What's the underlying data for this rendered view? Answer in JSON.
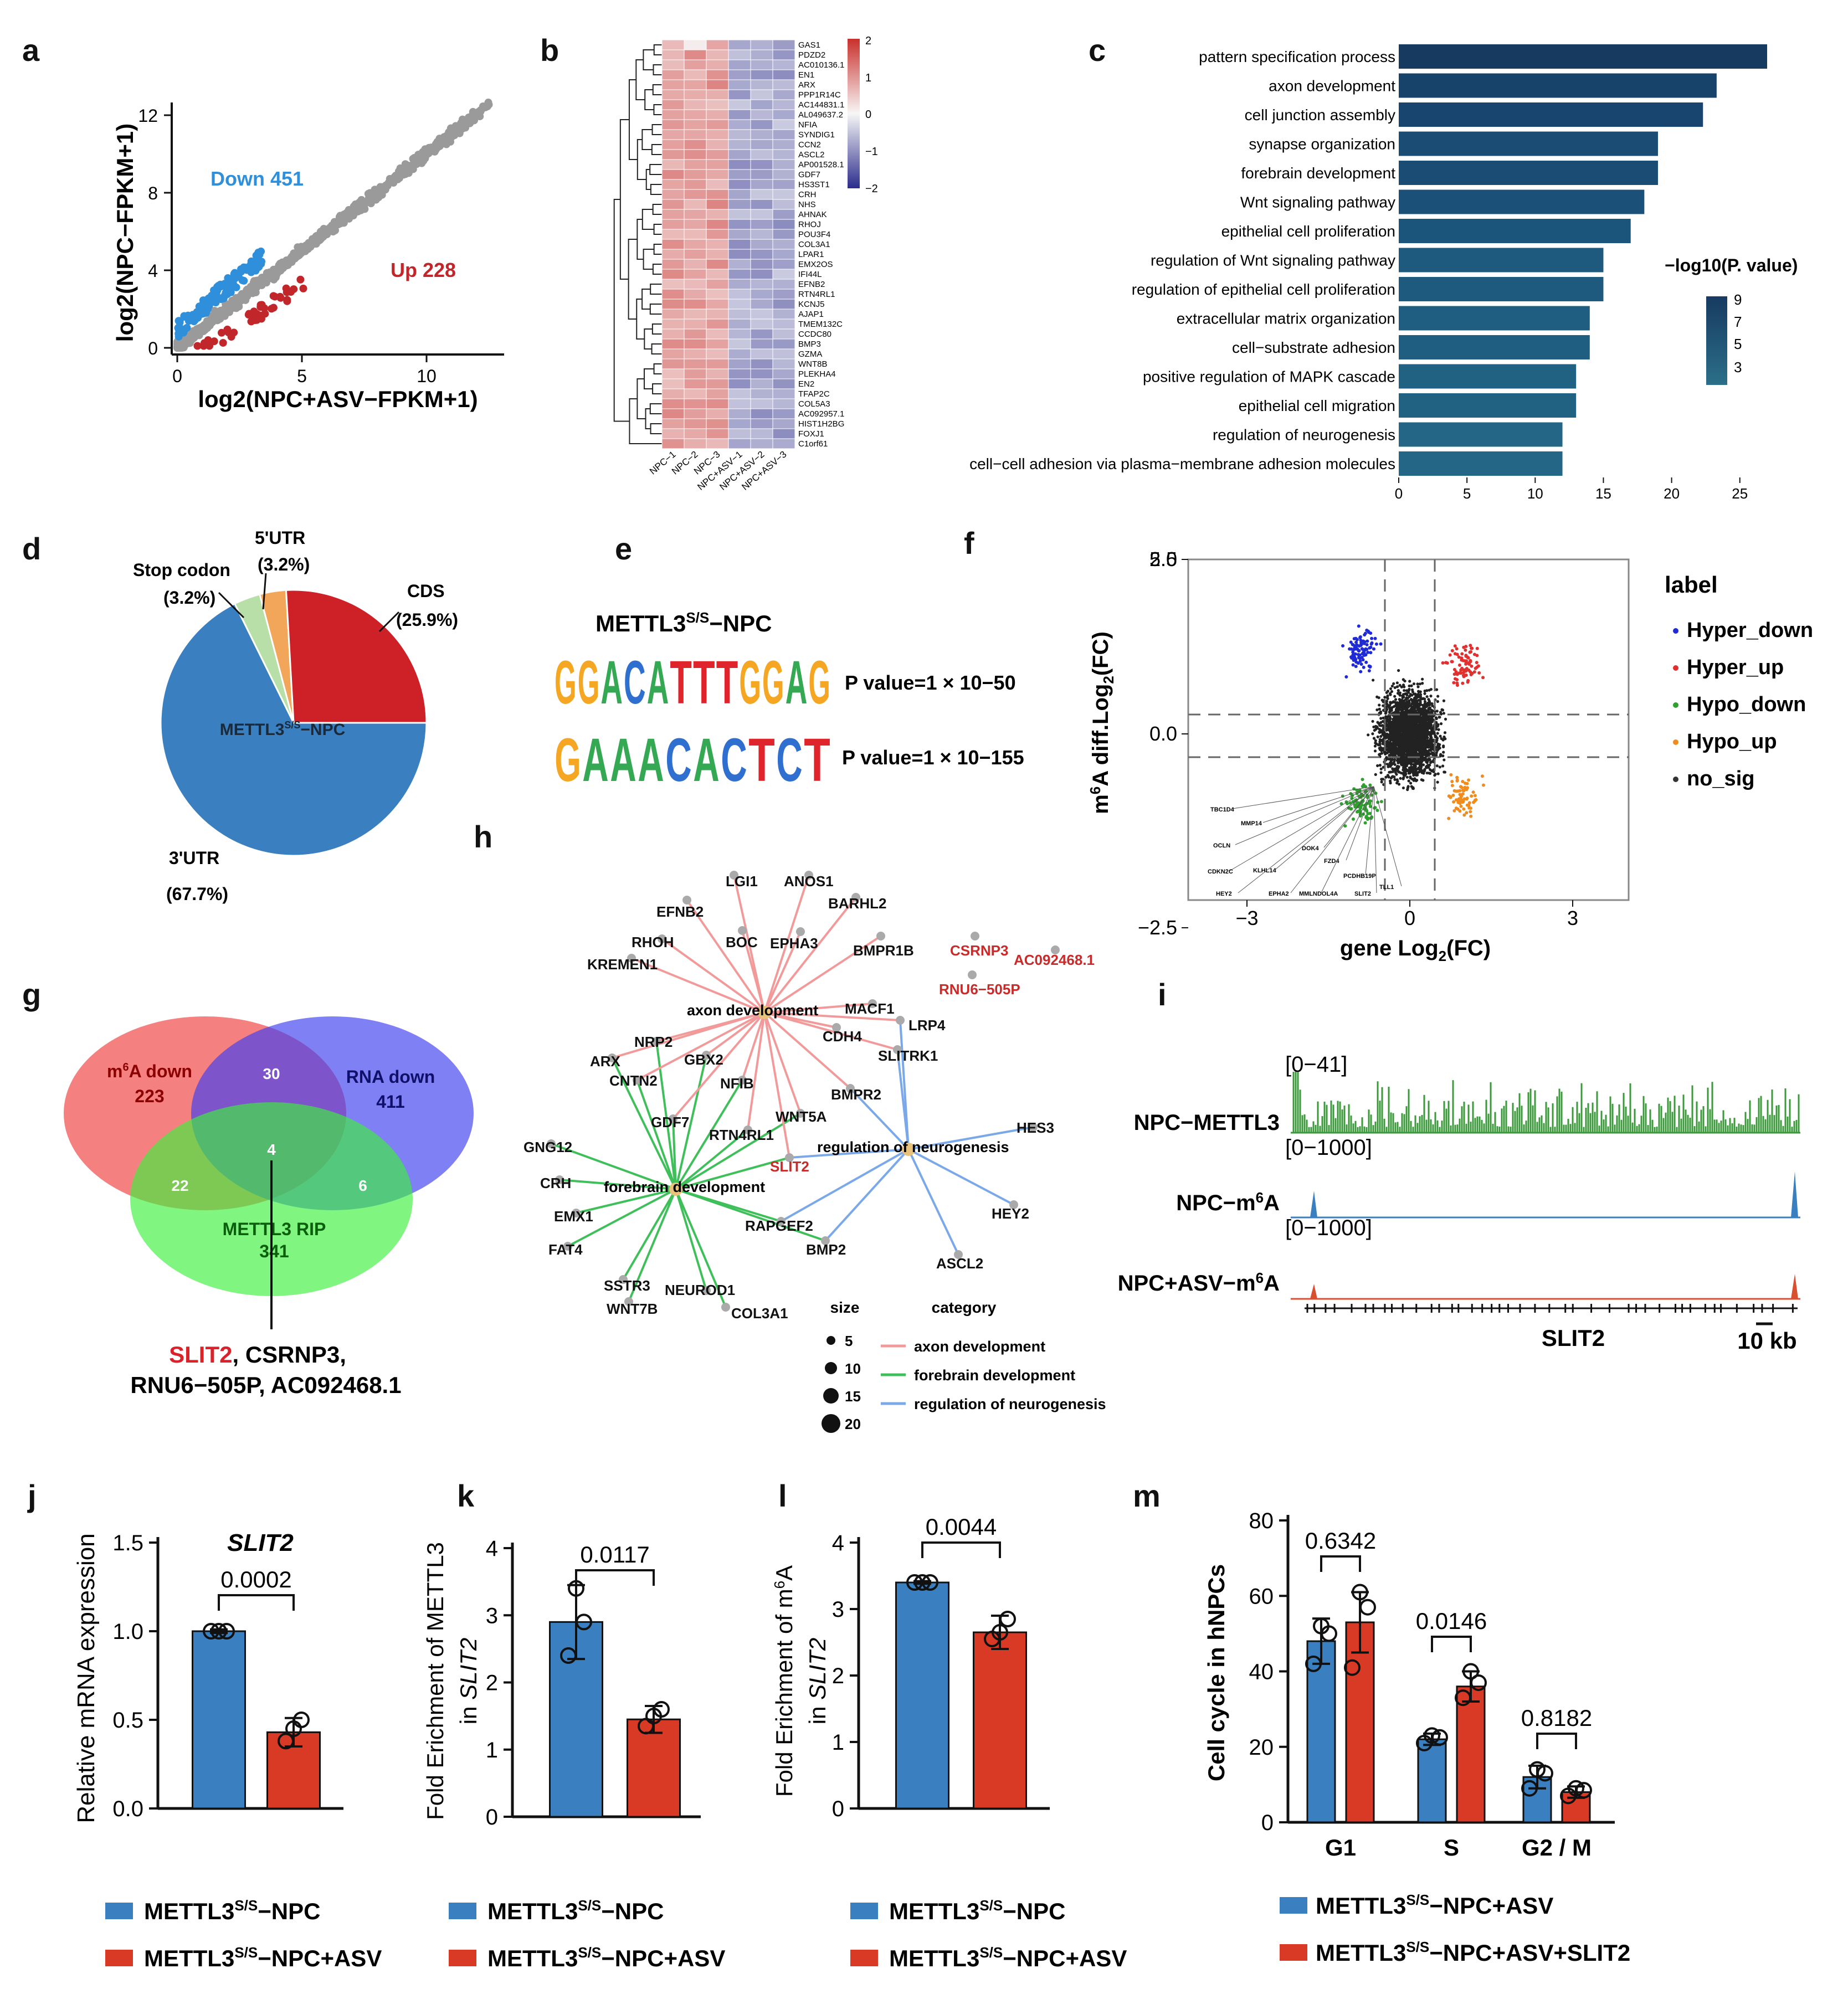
{
  "colors": {
    "blue": "#3a7fc0",
    "red": "#d93a25",
    "green": "#3aa83a",
    "gray": "#9a9a9a",
    "navy": "#173a61",
    "teal": "#23607f",
    "sigDown": "#2f8fdb",
    "sigUp": "#c0262a"
  },
  "panels": {
    "a": "a",
    "b": "b",
    "c": "c",
    "d": "d",
    "e": "e",
    "f": "f",
    "g": "g",
    "h": "h",
    "i": "i",
    "j": "j",
    "k": "k",
    "l": "l",
    "m": "m"
  },
  "panel_a": {
    "down_label": "Down 451",
    "up_label": "Up 228",
    "xlabel": "log2(NPC+ASV−FPKM+1)",
    "ylabel": "log2(NPC−FPKM+1)",
    "xticks": [
      "0",
      "5",
      "10"
    ],
    "yticks": [
      "0",
      "4",
      "8",
      "12"
    ]
  },
  "panel_b": {
    "genes": [
      "GAS1",
      "PDZD2",
      "AC010136.1",
      "EN1",
      "ARX",
      "PPP1R14C",
      "AC144831.1",
      "AL049637.2",
      "NFIA",
      "SYNDIG1",
      "CCN2",
      "ASCL2",
      "AP001528.1",
      "GDF7",
      "HS3ST1",
      "CRH",
      "NHS",
      "AHNAK",
      "RHOJ",
      "POU3F4",
      "COL3A1",
      "LPAR1",
      "EMX2OS",
      "IFI44L",
      "EFNB2",
      "RTN4RL1",
      "KCNJ5",
      "AJAP1",
      "TMEM132C",
      "CCDC80",
      "BMP3",
      "GZMA",
      "WNT8B",
      "PLEKHA4",
      "EN2",
      "TFAP2C",
      "COL5A3",
      "AC092957.1",
      "HIST1H2BG",
      "FOXJ1",
      "C1orf61"
    ],
    "samples": [
      "NPC−1",
      "NPC−2",
      "NPC−3",
      "NPC+ASV−1",
      "NPC+ASV−2",
      "NPC+ASV−3"
    ],
    "scale_ticks": [
      "2",
      "1",
      "0",
      "−1",
      "−2"
    ]
  },
  "chart_data": [
    {
      "panel": "c",
      "type": "bar",
      "orientation": "horizontal",
      "categories": [
        "pattern specification process",
        "axon development",
        "cell junction assembly",
        "synapse organization",
        "forebrain development",
        "Wnt signaling pathway",
        "epithelial cell proliferation",
        "regulation of Wnt signaling pathway",
        "regulation of epithelial cell proliferation",
        "extracellular matrix organization",
        "cell−substrate adhesion",
        "positive regulation of MAPK cascade",
        "epithelial cell migration",
        "regulation of neurogenesis",
        "cell−cell adhesion via plasma−membrane adhesion molecules"
      ],
      "values": [
        27,
        23.3,
        22.3,
        19,
        19,
        18,
        17,
        15,
        15,
        14,
        14,
        13,
        13,
        12,
        12
      ],
      "xticks": [
        "0",
        "5",
        "10",
        "15",
        "20",
        "25"
      ],
      "xlim": [
        0,
        27
      ],
      "legend_title": "−log10(P. value)",
      "legend_ticks": [
        "9",
        "7",
        "5",
        "3"
      ]
    },
    {
      "panel": "d",
      "type": "pie",
      "labels": [
        "3'UTR",
        "CDS",
        "5'UTR",
        "Stop codon"
      ],
      "values": [
        67.7,
        25.9,
        3.2,
        3.2
      ],
      "value_labels": [
        "(67.7%)",
        "(25.9%)",
        "(3.2%)",
        "(3.2%)"
      ],
      "center_label": "METTL3S/S−NPC"
    },
    {
      "panel": "f",
      "type": "scatter",
      "xlabel": "gene Log2(FC)",
      "ylabel": "m6A diff.Log2(FC)",
      "xticks": [
        "−3",
        "0",
        "3"
      ],
      "yticks": [
        "5.0",
        "2.5",
        "0.0",
        "−2.5"
      ],
      "legend_title": "label",
      "legend": [
        "Hyper_down",
        "Hyper_up",
        "Hypo_down",
        "Hypo_up",
        "no_sig"
      ],
      "annotated_genes": [
        "TBC1D4",
        "MMP14",
        "OCLN",
        "DOK4",
        "CDKN2C",
        "KLHL14",
        "FZD4",
        "PCDHB19P",
        "EPHA2",
        "HEY2",
        "MMLNDOL4A",
        "SLIT2",
        "TLL1"
      ]
    },
    {
      "panel": "j",
      "type": "bar",
      "title": "SLIT2",
      "ylabel": "Relative mRNA expression",
      "categories": [
        "METTL3S/S−NPC",
        "METTL3S/S−NPC+ASV"
      ],
      "values": [
        1.0,
        0.43
      ],
      "ylim": [
        0,
        1.5
      ],
      "yticks": [
        "0.0",
        "0.5",
        "1.0",
        "1.5"
      ],
      "pvalue": "0.0002"
    },
    {
      "panel": "k",
      "type": "bar",
      "ylabel": "Fold Erichment of METTL3 in SLIT2",
      "categories": [
        "METTL3S/S−NPC",
        "METTL3S/S−NPC+ASV"
      ],
      "values": [
        2.9,
        1.45
      ],
      "ylim": [
        0,
        4
      ],
      "yticks": [
        "0",
        "1",
        "2",
        "3",
        "4"
      ],
      "pvalue": "0.0117"
    },
    {
      "panel": "l",
      "type": "bar",
      "ylabel": "Fold Erichment of m6A in SLIT2",
      "categories": [
        "METTL3S/S−NPC",
        "METTL3S/S−NPC+ASV"
      ],
      "values": [
        3.4,
        2.65
      ],
      "ylim": [
        0,
        4
      ],
      "yticks": [
        "0",
        "1",
        "2",
        "3",
        "4"
      ],
      "pvalue": "0.0044"
    },
    {
      "panel": "m",
      "type": "bar",
      "ylabel": "Cell cycle in hNPCs",
      "categories": [
        "G1",
        "S",
        "G2 / M"
      ],
      "series": [
        {
          "name": "METTL3S/S−NPC+ASV",
          "values": [
            48,
            22,
            12
          ]
        },
        {
          "name": "METTL3S/S−NPC+ASV+SLIT2",
          "values": [
            53,
            36,
            8
          ]
        }
      ],
      "ylim": [
        0,
        80
      ],
      "yticks": [
        "0",
        "20",
        "40",
        "60",
        "80"
      ],
      "pvalues": [
        "0.6342",
        "0.0146",
        "0.8182"
      ]
    }
  ],
  "panel_e": {
    "title": "METTL3S/S−NPC",
    "motif1": "GGACATTTGGAG",
    "motif2": "GAAACACTCT",
    "p1": "P value=1 × 10−50",
    "p2": "P value=1 × 10−155"
  },
  "panel_g": {
    "set1": "m6A down",
    "n1": "223",
    "set2": "RNA down",
    "n2": "411",
    "set3": "METTL3 RIP",
    "n3": "341",
    "i12": "30",
    "i13": "22",
    "i23": "6",
    "i123": "4",
    "genes_hl": "SLIT2",
    "genes_rest": ", CSRNP3,",
    "genes_line2": "RNU6−505P, AC092468.1"
  },
  "panel_h": {
    "hubs": [
      "axon development",
      "forebrain development",
      "regulation of neurogenesis"
    ],
    "genes": [
      "LGI1",
      "ANOS1",
      "BARHL2",
      "EFNB2",
      "RHOH",
      "BOC",
      "EPHA3",
      "BMPR1B",
      "KREMEN1",
      "MACF1",
      "LRP4",
      "CDH4",
      "SLITRK1",
      "NRP2",
      "GBX2",
      "ARX",
      "CNTN2",
      "NFIB",
      "BMPR2",
      "WNT5A",
      "GDF7",
      "RTN4RL1",
      "SLIT2",
      "HES3",
      "GNG12",
      "CRH",
      "EMX1",
      "FAT4",
      "RAPGEF2",
      "HEY2",
      "BMP2",
      "ASCL2",
      "SSTR3",
      "NEUROD1",
      "WNT7B",
      "COL3A1",
      "CSRNP3",
      "AC092468.1",
      "RNU6−505P"
    ],
    "size_title": "size",
    "sizes": [
      "5",
      "10",
      "15",
      "20"
    ],
    "cat_title": "category",
    "cats": [
      "axon development",
      "forebrain development",
      "regulation of neurogenesis"
    ]
  },
  "panel_i": {
    "r1": "[0−41]",
    "r2": "[0−1000]",
    "r3": "[0−1000]",
    "t1": "NPC−METTL3",
    "t2": "NPC−m6A",
    "t3": "NPC+ASV−m6A",
    "gene": "SLIT2",
    "scale": "10 kb"
  },
  "legends": {
    "jkl_1": "METTL3S/S−NPC",
    "jkl_2": "METTL3S/S−NPC+ASV",
    "m_1": "METTL3S/S−NPC+ASV",
    "m_2": "METTL3S/S−NPC+ASV+SLIT2"
  }
}
